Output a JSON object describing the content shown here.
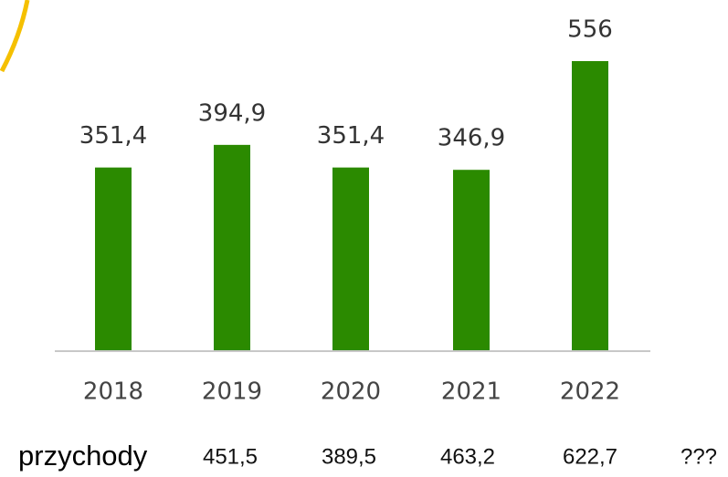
{
  "chart_data": {
    "type": "bar",
    "categories": [
      "2018",
      "2019",
      "2020",
      "2021",
      "2022"
    ],
    "values": [
      351.4,
      394.9,
      351.4,
      346.9,
      556
    ],
    "value_labels": [
      "351,4",
      "394,9",
      "351,4",
      "346,9",
      "556"
    ],
    "color": "#2b8a00"
  },
  "row": {
    "label": "przychody",
    "values": [
      "451,5",
      "389,5",
      "463,2",
      "622,7",
      "???"
    ]
  }
}
